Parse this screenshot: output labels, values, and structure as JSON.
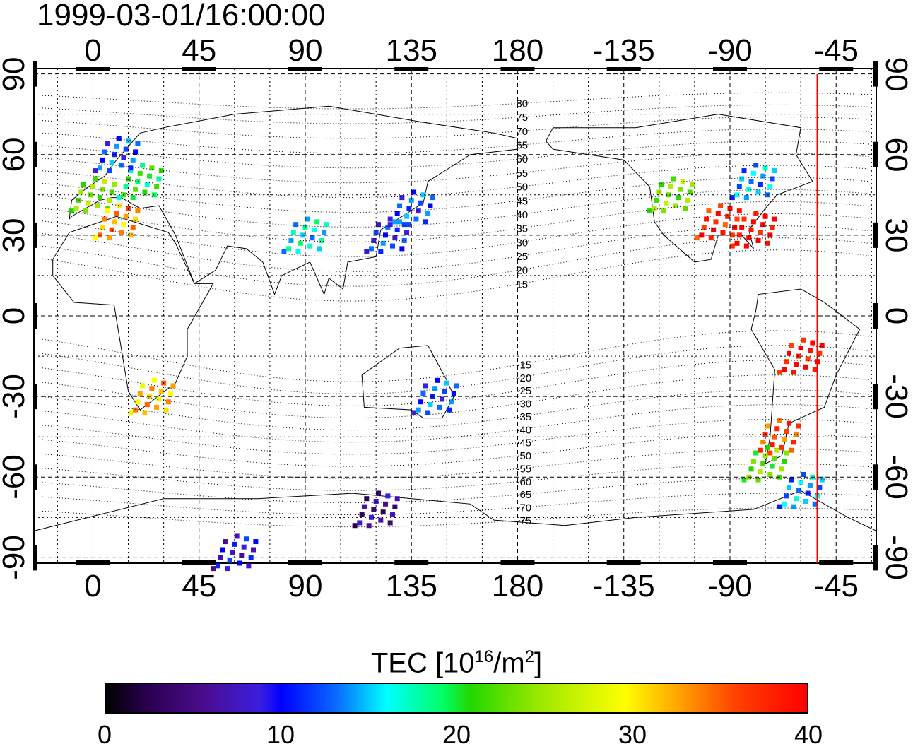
{
  "title": "1999-03-01/16:00:00",
  "lon_ticks": [
    {
      "value": 0,
      "label": "0"
    },
    {
      "value": 45,
      "label": "45"
    },
    {
      "value": 90,
      "label": "90"
    },
    {
      "value": 135,
      "label": "135"
    },
    {
      "value": 180,
      "label": "180"
    },
    {
      "value": 225,
      "label": "-135"
    },
    {
      "value": 270,
      "label": "-90"
    },
    {
      "value": 315,
      "label": "-45"
    }
  ],
  "lat_ticks": [
    {
      "value": 90,
      "label": "90"
    },
    {
      "value": 60,
      "label": "60"
    },
    {
      "value": 30,
      "label": "30"
    },
    {
      "value": 0,
      "label": "0"
    },
    {
      "value": -30,
      "label": "-30"
    },
    {
      "value": -60,
      "label": "-60"
    },
    {
      "value": -90,
      "label": "-90"
    }
  ],
  "map": {
    "lon_range": [
      -25,
      332
    ],
    "lat_range": [
      -92,
      92
    ],
    "terminator_lon": 307,
    "terminator_color": "#ff0000",
    "magnetic_lat_labels": [
      "80",
      "75",
      "70",
      "65",
      "60",
      "55",
      "50",
      "45",
      "40",
      "35",
      "30",
      "25",
      "20",
      "15",
      "-15",
      "-20",
      "-25",
      "-30",
      "-35",
      "-40",
      "-45",
      "-50",
      "-55",
      "-60",
      "-65",
      "-70",
      "-75"
    ]
  },
  "colorbar": {
    "title": "TEC  [10",
    "title_sup1": "16",
    "title_mid": "/m",
    "title_sup2": "2",
    "title_end": "]",
    "min": 0,
    "max": 40,
    "ticks": [
      "0",
      "10",
      "20",
      "30",
      "40"
    ]
  },
  "chart_data": {
    "type": "heatmap",
    "title": "1999-03-01/16:00:00",
    "value_label": "TEC [10^16/m^2]",
    "value_range": [
      0,
      40
    ],
    "regions": [
      {
        "lon": 0,
        "lat": 45,
        "tec": 24
      },
      {
        "lon": 10,
        "lat": 35,
        "tec": 33
      },
      {
        "lon": 20,
        "lat": 50,
        "tec": 20
      },
      {
        "lon": 10,
        "lat": 60,
        "tec": 12
      },
      {
        "lon": 25,
        "lat": -30,
        "tec": 32
      },
      {
        "lon": 125,
        "lat": 30,
        "tec": 11
      },
      {
        "lon": 135,
        "lat": 40,
        "tec": 12
      },
      {
        "lon": 90,
        "lat": 30,
        "tec": 16
      },
      {
        "lon": 145,
        "lat": -30,
        "tec": 12
      },
      {
        "lon": 245,
        "lat": 45,
        "tec": 24
      },
      {
        "lon": 265,
        "lat": 35,
        "tec": 38
      },
      {
        "lon": 280,
        "lat": 32,
        "tec": 40
      },
      {
        "lon": 280,
        "lat": 50,
        "tec": 14
      },
      {
        "lon": 300,
        "lat": -15,
        "tec": 39
      },
      {
        "lon": 290,
        "lat": -45,
        "tec": 36
      },
      {
        "lon": 285,
        "lat": -55,
        "tec": 23
      },
      {
        "lon": 300,
        "lat": -65,
        "tec": 14
      },
      {
        "lon": 120,
        "lat": -72,
        "tec": 6
      },
      {
        "lon": 60,
        "lat": -88,
        "tec": 9
      }
    ]
  }
}
